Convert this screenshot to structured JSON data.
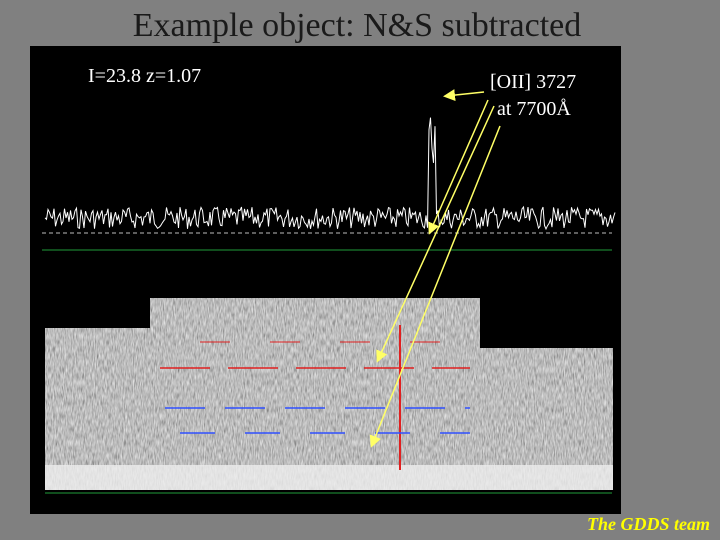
{
  "header": {
    "title": "Example object: N&S subtracted"
  },
  "annotations": {
    "object": "I=23.8 z=1.07",
    "line": "[OII] 3727",
    "wavelength": "at 7700Å"
  },
  "footer": "The GDDS team"
}
